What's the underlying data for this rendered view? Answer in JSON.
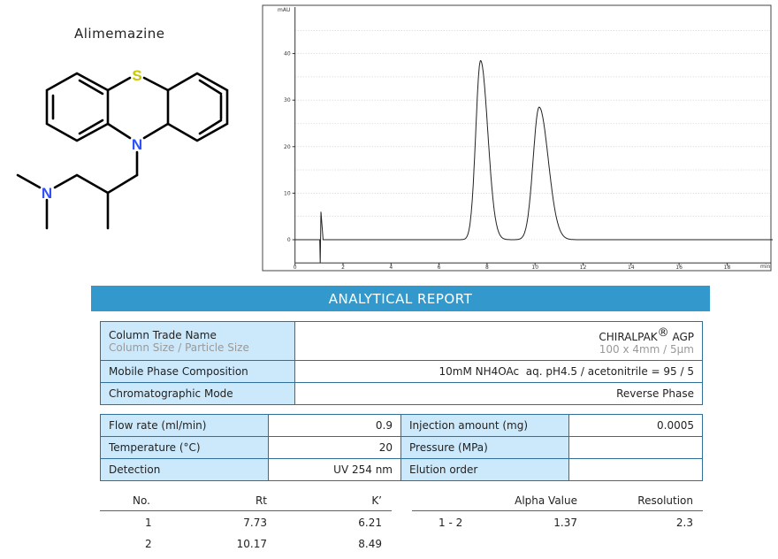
{
  "compound_name": "Alimemazine",
  "molecule": {
    "atoms": {
      "sulfur": "S",
      "nitrogen_ring": "N",
      "nitrogen_amine": "N"
    },
    "colors": {
      "sulfur": "#c8c800",
      "nitrogen": "#3050f8"
    }
  },
  "report_title": "ANALYTICAL REPORT",
  "column_table": {
    "trade_name_label": "Column Trade Name",
    "size_label": "Column Size / Particle Size",
    "trade_name": "CHIRALPAK",
    "trade_mark": "®",
    "trade_suffix": " AGP",
    "size_value": "100 x 4mm / 5µm",
    "mobile_label": "Mobile Phase Composition",
    "mobile_value": "10mM NH4OAc  aq. pH4.5 / acetonitrile = 95 / 5",
    "mode_label": "Chromatographic Mode",
    "mode_value": "Reverse Phase"
  },
  "conditions": [
    {
      "label": "Flow rate (ml/min)",
      "value": "0.9",
      "label2": "Injection amount (mg)",
      "value2": "0.0005"
    },
    {
      "label": "Temperature (°C)",
      "value": "20",
      "label2": "Pressure (MPa)",
      "value2": ""
    },
    {
      "label": "Detection",
      "value": "UV 254 nm",
      "label2": "Elution order",
      "value2": ""
    }
  ],
  "results": {
    "headers": {
      "no": "No.",
      "rt": "Rt",
      "k": "K’",
      "alpha": "Alpha Value",
      "resolution": "Resolution"
    },
    "rows": [
      {
        "no": "1",
        "rt": "7.73",
        "k": "6.21"
      },
      {
        "no": "2",
        "rt": "10.17",
        "k": "8.49"
      }
    ],
    "pair": {
      "label": "1 - 2",
      "alpha": "1.37",
      "resolution": "2.3"
    }
  },
  "colors": {
    "accent": "#3399cc",
    "label_bg": "#cce9fb",
    "border": "#2f6f9a"
  },
  "chart_data": {
    "type": "line",
    "ylabel": "mAU",
    "xlabel": "min",
    "xlim": [
      0,
      19.9
    ],
    "ylim": [
      -5,
      49.5
    ],
    "xticks": [
      0,
      2,
      4,
      6,
      8,
      10,
      12,
      14,
      16,
      18
    ],
    "yticks": [
      0,
      10,
      20,
      30,
      40
    ],
    "grid": "horizontal dotted",
    "peaks": [
      {
        "rt": 7.73,
        "height": 38.5
      },
      {
        "rt": 10.17,
        "height": 28.5
      }
    ],
    "injection_disturbance": {
      "time": 1.05,
      "min": -5,
      "max": 6
    }
  }
}
